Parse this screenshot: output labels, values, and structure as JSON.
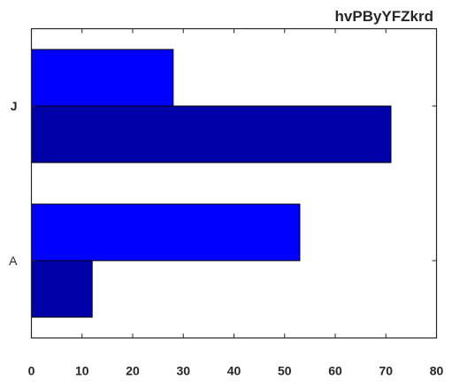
{
  "chart_data": {
    "type": "bar",
    "orientation": "horizontal",
    "title": "hvPByYFZkrd",
    "xlabel": "",
    "ylabel": "",
    "categories": [
      "A",
      "J"
    ],
    "category_label_weight": [
      "normal",
      "bold"
    ],
    "series": [
      {
        "values": [
          53,
          28
        ],
        "color": "#0000ff"
      },
      {
        "values": [
          12,
          71
        ],
        "color": "#0000a8"
      }
    ],
    "xlim": [
      0,
      80
    ],
    "xticks": [
      0,
      10,
      20,
      30,
      40,
      50,
      60,
      70,
      80
    ],
    "grid": false,
    "legend": "none"
  }
}
